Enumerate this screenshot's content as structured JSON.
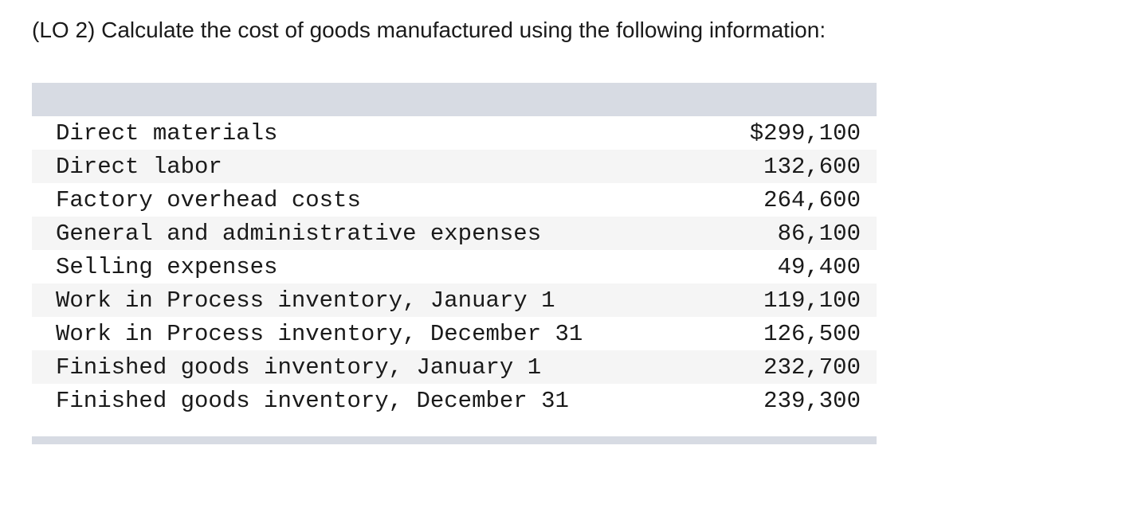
{
  "question": "(LO 2) Calculate the cost of goods manufactured using the following information:",
  "table": {
    "rows": [
      {
        "label": "Direct materials",
        "value": "$299,100"
      },
      {
        "label": "Direct labor",
        "value": "132,600"
      },
      {
        "label": "Factory overhead costs",
        "value": "264,600"
      },
      {
        "label": "General and administrative expenses",
        "value": "86,100"
      },
      {
        "label": "Selling expenses",
        "value": "49,400"
      },
      {
        "label": "Work in Process inventory, January 1",
        "value": "119,100"
      },
      {
        "label": "Work in Process inventory, December 31",
        "value": "126,500"
      },
      {
        "label": "Finished goods inventory, January 1",
        "value": "232,700"
      },
      {
        "label": "Finished goods inventory, December 31",
        "value": "239,300"
      }
    ]
  },
  "colors": {
    "header_band": "#d7dbe3",
    "row_stripe": "#f5f5f5",
    "text": "#1a1a1a"
  }
}
